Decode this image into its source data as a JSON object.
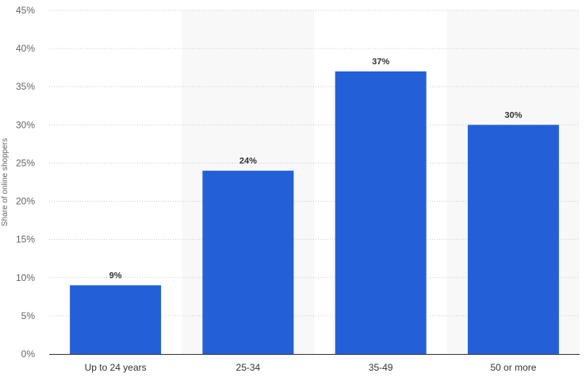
{
  "chart_data": {
    "type": "bar",
    "title": "",
    "xlabel": "",
    "ylabel": "Share of online shoppers",
    "categories": [
      "Up to 24 years",
      "25-34",
      "35-49",
      "50 or more"
    ],
    "values": [
      9,
      24,
      37,
      30
    ],
    "data_labels": [
      "9%",
      "24%",
      "37%",
      "30%"
    ],
    "ylim": [
      0,
      45
    ],
    "y_ticks": [
      0,
      5,
      10,
      15,
      20,
      25,
      30,
      35,
      40,
      45
    ],
    "y_tick_labels": [
      "0%",
      "5%",
      "10%",
      "15%",
      "20%",
      "25%",
      "30%",
      "35%",
      "40%",
      "45%"
    ],
    "grid": true,
    "legend": "none",
    "colors": {
      "bar": "#2360d8",
      "band": "#f8f8f8",
      "grid": "#cccccc",
      "axis": "#333333"
    }
  }
}
